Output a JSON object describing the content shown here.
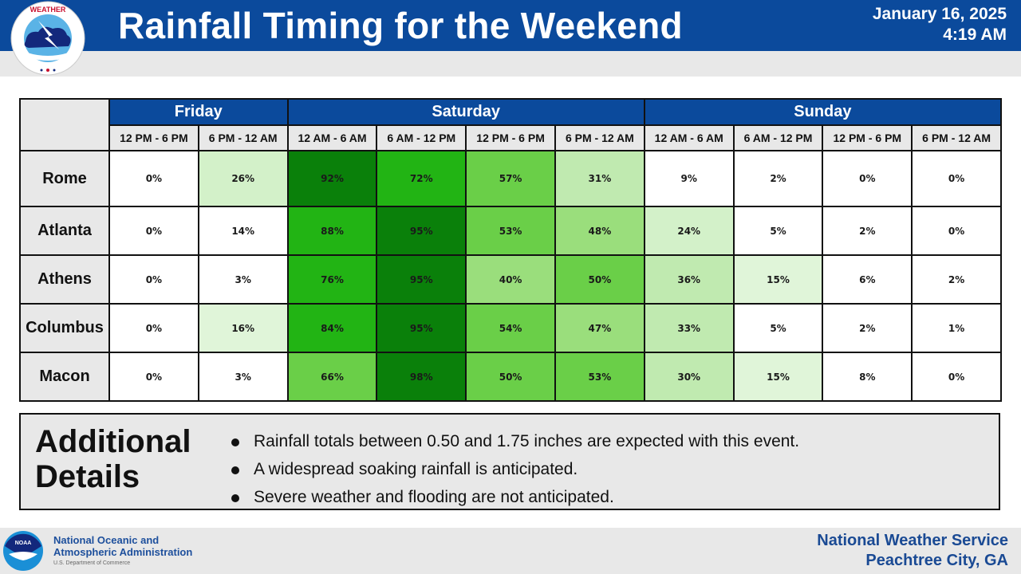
{
  "header": {
    "title": "Rainfall Timing for the Weekend",
    "date": "January 16, 2025",
    "time": "4:19 AM",
    "logo": "nws-logo-icon",
    "color": "#0b4a9c"
  },
  "table": {
    "days": [
      {
        "label": "Friday",
        "span": 2
      },
      {
        "label": "Saturday",
        "span": 4
      },
      {
        "label": "Sunday",
        "span": 4
      }
    ],
    "slots": [
      "12 PM - 6 PM",
      "6 PM - 12 AM",
      "12 AM - 6 AM",
      "6 AM - 12 PM",
      "12 PM - 6 PM",
      "6 PM - 12 AM",
      "12 AM - 6 AM",
      "6 AM - 12 PM",
      "12 PM - 6 PM",
      "6 PM - 12 AM"
    ],
    "rows": [
      {
        "city": "Rome",
        "values": [
          "0%",
          "26%",
          "92%",
          "72%",
          "57%",
          "31%",
          "9%",
          "2%",
          "0%",
          "0%"
        ]
      },
      {
        "city": "Atlanta",
        "values": [
          "0%",
          "14%",
          "88%",
          "95%",
          "53%",
          "48%",
          "24%",
          "5%",
          "2%",
          "0%"
        ]
      },
      {
        "city": "Athens",
        "values": [
          "0%",
          "3%",
          "76%",
          "95%",
          "40%",
          "50%",
          "36%",
          "15%",
          "6%",
          "2%"
        ]
      },
      {
        "city": "Columbus",
        "values": [
          "0%",
          "16%",
          "84%",
          "95%",
          "54%",
          "47%",
          "33%",
          "5%",
          "2%",
          "1%"
        ]
      },
      {
        "city": "Macon",
        "values": [
          "0%",
          "3%",
          "66%",
          "98%",
          "50%",
          "53%",
          "30%",
          "15%",
          "8%",
          "0%"
        ]
      }
    ],
    "color_scale": {
      "lt15": "#ffffff",
      "15to19": "#e0f5d9",
      "20to29": "#d3f1c9",
      "30to39": "#c0eab0",
      "40to49": "#9ade7c",
      "50to69": "#6acf48",
      "70to89": "#22b414",
      "90plus": "#0a800a"
    }
  },
  "details": {
    "heading_line1": "Additional",
    "heading_line2": "Details",
    "bullets": [
      "Rainfall totals between 0.50 and 1.75 inches are expected with this event.",
      "A widespread soaking rainfall is anticipated.",
      "Severe weather and flooding are not anticipated."
    ]
  },
  "footer": {
    "noaa_line1": "National Oceanic and",
    "noaa_line2": "Atmospheric Administration",
    "noaa_dept": "U.S. Department of Commerce",
    "office_line1": "National Weather Service",
    "office_line2": "Peachtree City, GA",
    "noaa_logo": "noaa-logo-icon"
  }
}
